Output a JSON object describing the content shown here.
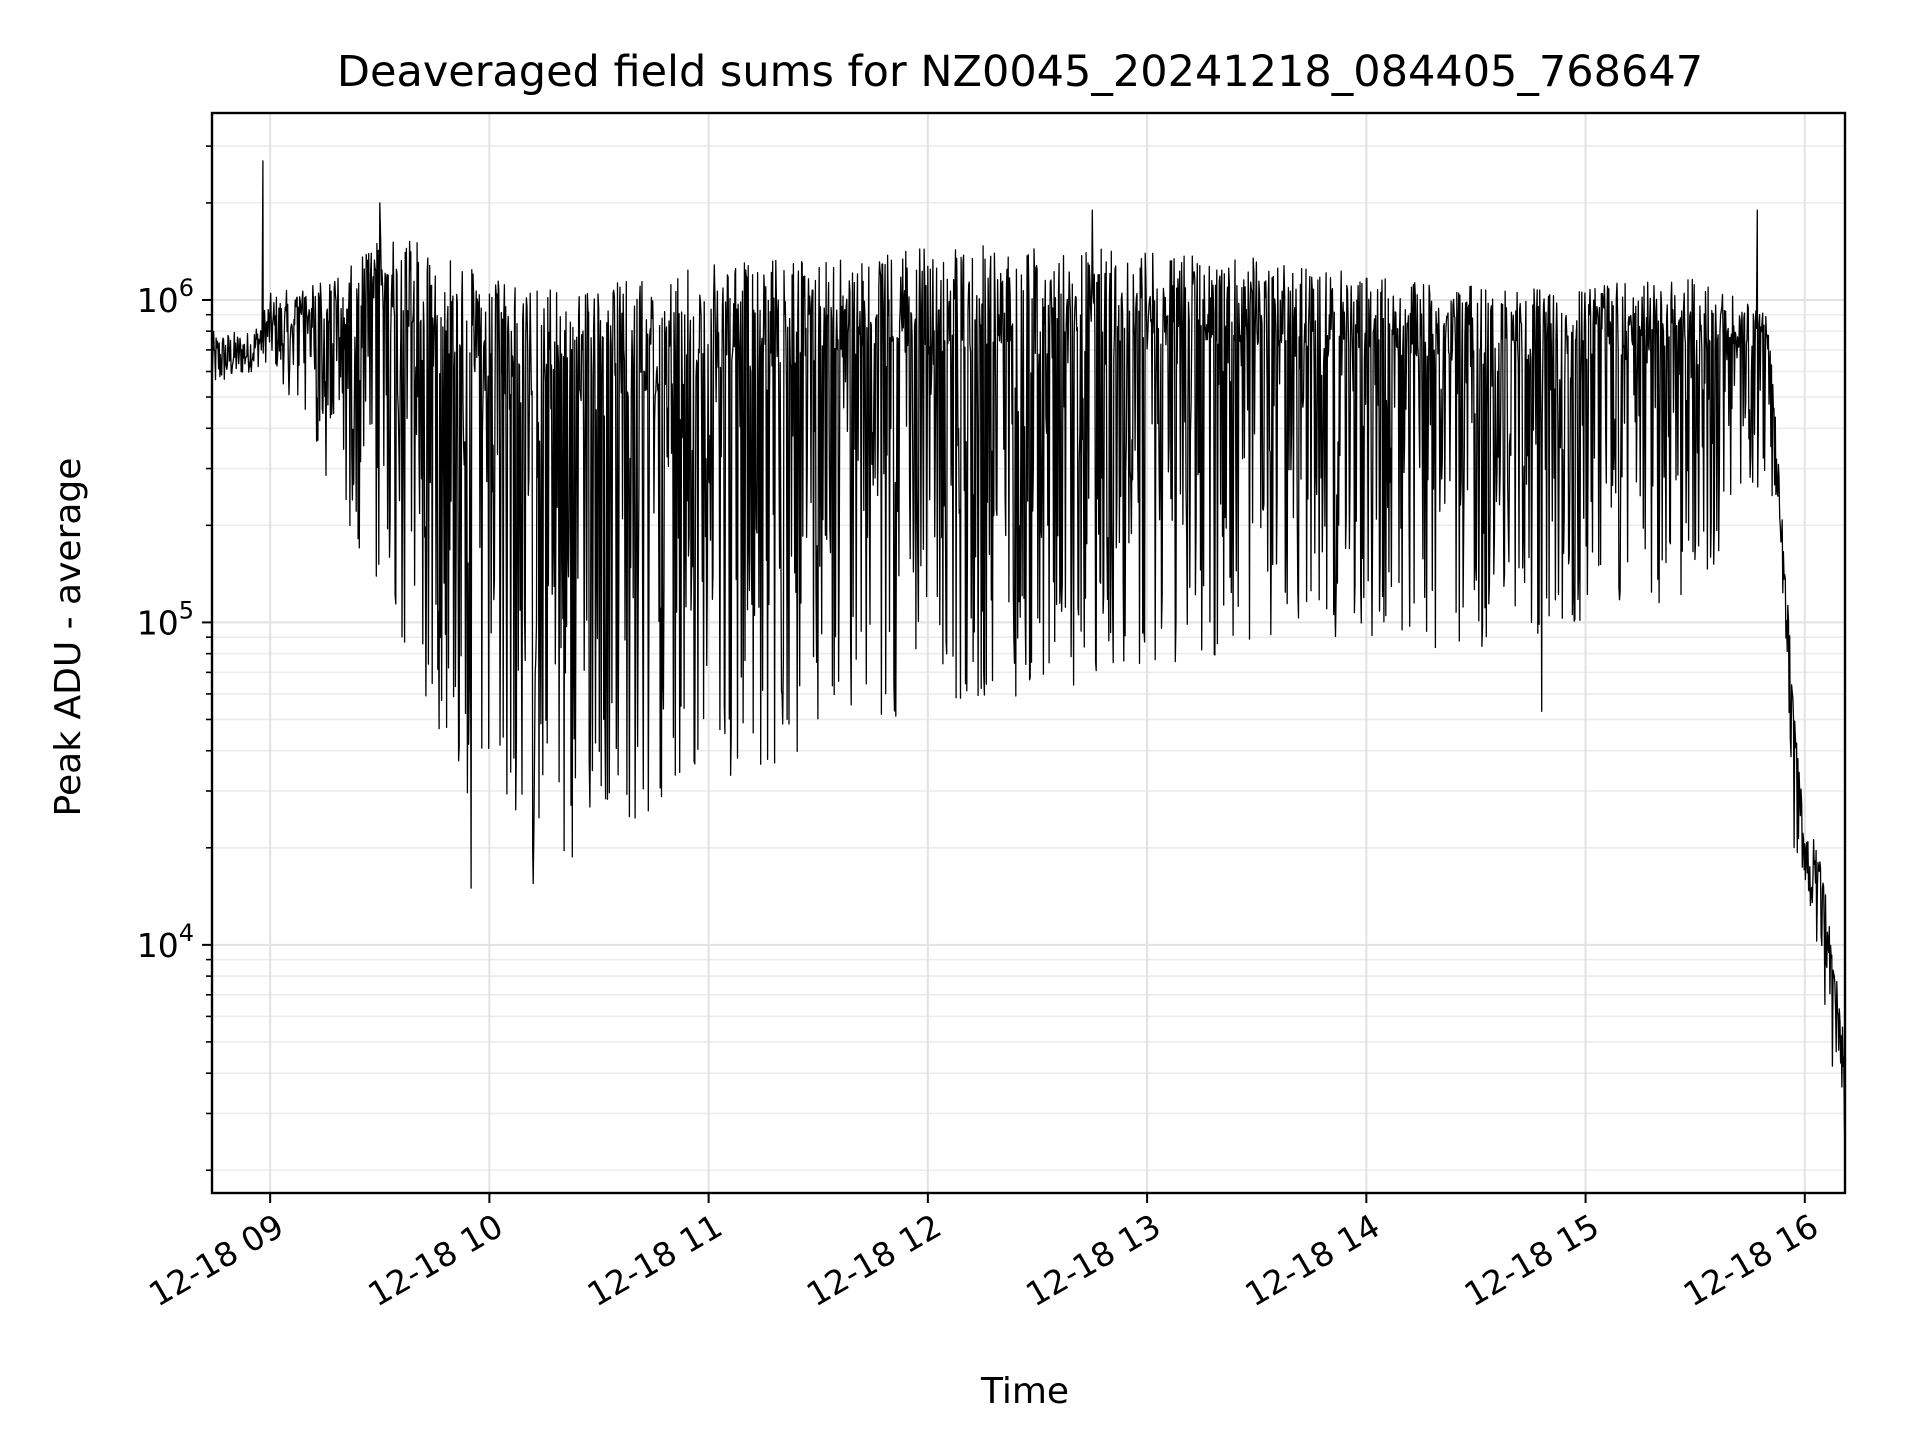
{
  "chart_data": {
    "type": "line",
    "title": "Deaveraged field sums for NZ0045_20241218_084405_768647",
    "xlabel": "Time",
    "ylabel": "Peak ADU - average",
    "x_axis": {
      "kind": "datetime",
      "range": [
        "2024-12-18 08:44:05",
        "2024-12-18 16:11:00"
      ],
      "ticks": [
        {
          "value": "2024-12-18 09:00",
          "label": "12-18 09"
        },
        {
          "value": "2024-12-18 10:00",
          "label": "12-18 10"
        },
        {
          "value": "2024-12-18 11:00",
          "label": "12-18 11"
        },
        {
          "value": "2024-12-18 12:00",
          "label": "12-18 12"
        },
        {
          "value": "2024-12-18 13:00",
          "label": "12-18 13"
        },
        {
          "value": "2024-12-18 14:00",
          "label": "12-18 14"
        },
        {
          "value": "2024-12-18 15:00",
          "label": "12-18 15"
        },
        {
          "value": "2024-12-18 16:00",
          "label": "12-18 16"
        }
      ]
    },
    "y_axis": {
      "scale": "log",
      "range": [
        1700,
        3800000
      ],
      "ticks": [
        {
          "value": 10000,
          "base": "10",
          "exp": "4"
        },
        {
          "value": 100000,
          "base": "10",
          "exp": "5"
        },
        {
          "value": 1000000,
          "base": "10",
          "exp": "6"
        }
      ]
    },
    "grid": true,
    "legend": "none",
    "series": [
      {
        "color": "#000000",
        "trend": [
          {
            "x": "2024-12-18 08:44",
            "upper": 800000,
            "lower": 520000
          },
          {
            "x": "2024-12-18 08:55",
            "upper": 800000,
            "lower": 600000
          },
          {
            "x": "2024-12-18 09:00",
            "upper": 1050000,
            "lower": 650000
          },
          {
            "x": "2024-12-18 09:10",
            "upper": 1100000,
            "lower": 400000
          },
          {
            "x": "2024-12-18 09:20",
            "upper": 1200000,
            "lower": 200000
          },
          {
            "x": "2024-12-18 09:30",
            "upper": 1600000,
            "lower": 130000
          },
          {
            "x": "2024-12-18 09:45",
            "upper": 1500000,
            "lower": 50000
          },
          {
            "x": "2024-12-18 10:00",
            "upper": 1150000,
            "lower": 20000
          },
          {
            "x": "2024-12-18 10:20",
            "upper": 1100000,
            "lower": 18000
          },
          {
            "x": "2024-12-18 10:40",
            "upper": 1150000,
            "lower": 24000
          },
          {
            "x": "2024-12-18 11:00",
            "upper": 1300000,
            "lower": 32000
          },
          {
            "x": "2024-12-18 11:30",
            "upper": 1350000,
            "lower": 40000
          },
          {
            "x": "2024-12-18 12:00",
            "upper": 1450000,
            "lower": 55000
          },
          {
            "x": "2024-12-18 12:30",
            "upper": 1500000,
            "lower": 60000
          },
          {
            "x": "2024-12-18 13:00",
            "upper": 1400000,
            "lower": 70000
          },
          {
            "x": "2024-12-18 13:30",
            "upper": 1350000,
            "lower": 80000
          },
          {
            "x": "2024-12-18 14:00",
            "upper": 1200000,
            "lower": 90000
          },
          {
            "x": "2024-12-18 14:30",
            "upper": 1100000,
            "lower": 80000
          },
          {
            "x": "2024-12-18 15:00",
            "upper": 1100000,
            "lower": 100000
          },
          {
            "x": "2024-12-18 15:30",
            "upper": 1200000,
            "lower": 120000
          },
          {
            "x": "2024-12-18 15:50",
            "upper": 900000,
            "lower": 300000
          },
          {
            "x": "2024-12-18 15:54",
            "upper": 200000,
            "lower": 120000
          },
          {
            "x": "2024-12-18 15:57",
            "upper": 60000,
            "lower": 20000
          },
          {
            "x": "2024-12-18 16:00",
            "upper": 25000,
            "lower": 16000
          },
          {
            "x": "2024-12-18 16:04",
            "upper": 20000,
            "lower": 8000
          },
          {
            "x": "2024-12-18 16:08",
            "upper": 9000,
            "lower": 3500
          },
          {
            "x": "2024-12-18 16:11",
            "upper": 5000,
            "lower": 2300
          }
        ],
        "spikes_high": [
          {
            "x": "2024-12-18 08:58",
            "y": 2700000
          },
          {
            "x": "2024-12-18 09:30",
            "y": 2000000
          },
          {
            "x": "2024-12-18 12:45",
            "y": 1900000
          },
          {
            "x": "2024-12-18 15:47",
            "y": 1900000
          }
        ],
        "spikes_low": [
          {
            "x": "2024-12-18 09:55",
            "y": 15000
          },
          {
            "x": "2024-12-18 10:12",
            "y": 15500
          },
          {
            "x": "2024-12-18 14:48",
            "y": 53000
          },
          {
            "x": "2024-12-18 16:11",
            "y": 2300
          }
        ]
      }
    ]
  }
}
